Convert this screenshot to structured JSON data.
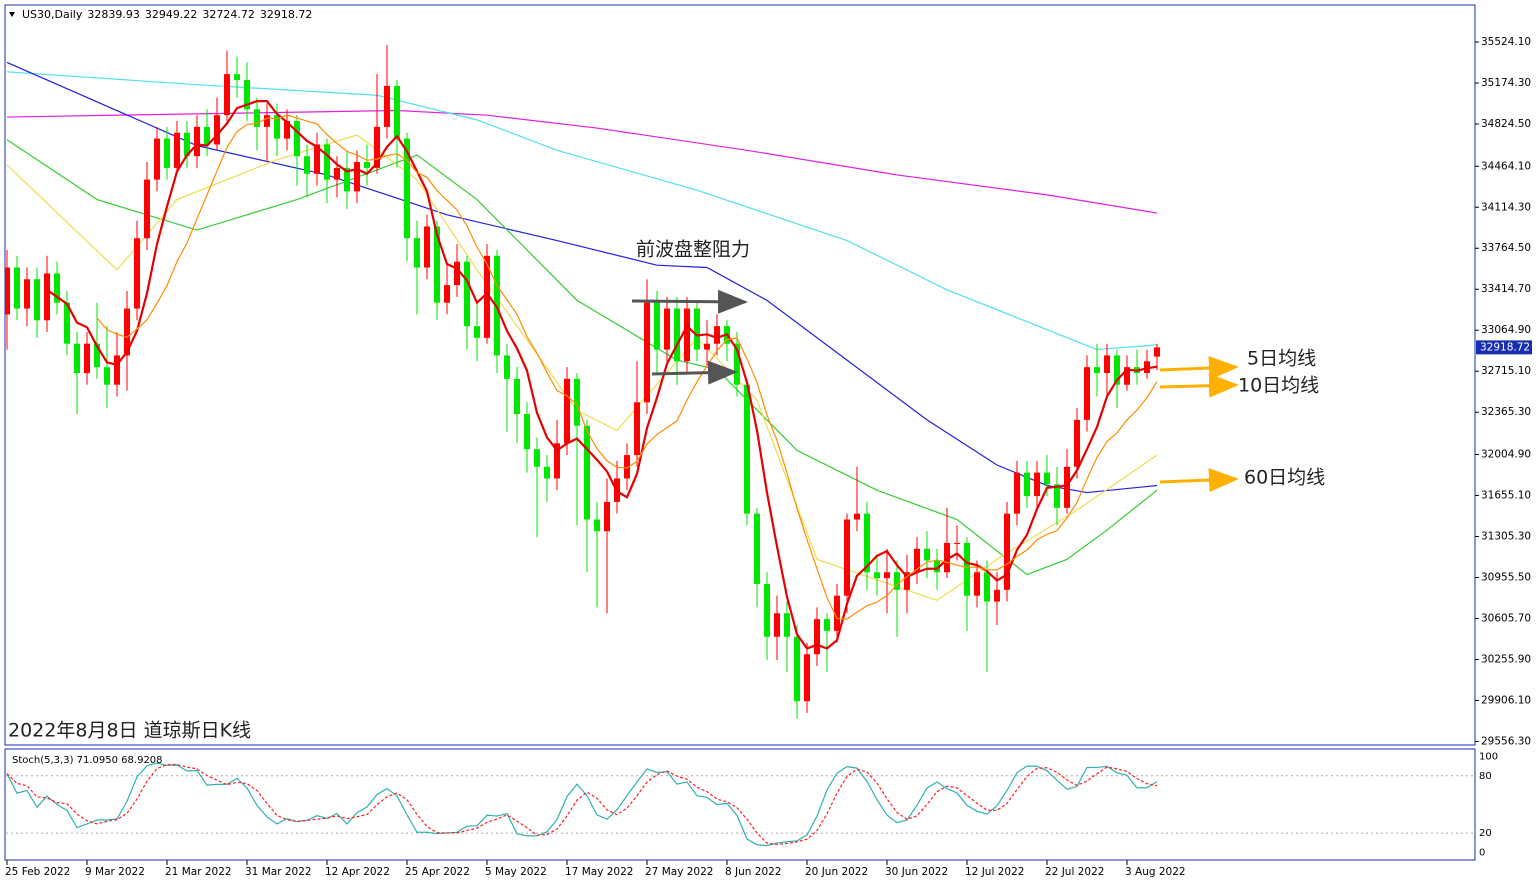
{
  "chart_data": {
    "type": "candlestick",
    "symbol": "US30,Daily",
    "title": "2022年8月8日 道琼斯日K线",
    "annotations": [
      "前波盘整阻力",
      "5日均线",
      "10日均线",
      "60日均线"
    ],
    "up_color": "#ff0000",
    "down_color": "#00e600",
    "ylim": [
      29526,
      35840
    ],
    "yticks": [
      {
        "value": 35524.1,
        "label": "35524.10"
      },
      {
        "value": 35174.3,
        "label": "35174.30"
      },
      {
        "value": 34824.5,
        "label": "34824.50"
      },
      {
        "value": 34464.1,
        "label": "34464.10"
      },
      {
        "value": 34114.3,
        "label": "34114.30"
      },
      {
        "value": 33764.5,
        "label": "33764.50"
      },
      {
        "value": 33414.7,
        "label": "33414.70"
      },
      {
        "value": 33064.9,
        "label": "33064.90"
      },
      {
        "value": 32715.1,
        "label": "32715.10"
      },
      {
        "value": 32365.3,
        "label": "32365.30"
      },
      {
        "value": 32004.9,
        "label": "32004.90"
      },
      {
        "value": 31655.1,
        "label": "31655.10"
      },
      {
        "value": 31305.3,
        "label": "31305.30"
      },
      {
        "value": 30955.5,
        "label": "30955.50"
      },
      {
        "value": 30605.7,
        "label": "30605.70"
      },
      {
        "value": 30255.9,
        "label": "30255.90"
      },
      {
        "value": 29906.1,
        "label": "29906.10"
      },
      {
        "value": 29556.3,
        "label": "29556.30"
      }
    ],
    "xticks": [
      {
        "value": 0,
        "label": "25 Feb 2022"
      },
      {
        "value": 8,
        "label": "9 Mar 2022"
      },
      {
        "value": 16,
        "label": "21 Mar 2022"
      },
      {
        "value": 24,
        "label": "31 Mar 2022"
      },
      {
        "value": 32,
        "label": "12 Apr 2022"
      },
      {
        "value": 40,
        "label": "25 Apr 2022"
      },
      {
        "value": 48,
        "label": "5 May 2022"
      },
      {
        "value": 56,
        "label": "17 May 2022"
      },
      {
        "value": 64,
        "label": "27 May 2022"
      },
      {
        "value": 72,
        "label": "8 Jun 2022"
      },
      {
        "value": 80,
        "label": "20 Jun 2022"
      },
      {
        "value": 88,
        "label": "30 Jun 2022"
      },
      {
        "value": 96,
        "label": "12 Jul 2022"
      },
      {
        "value": 104,
        "label": "22 Jul 2022"
      },
      {
        "value": 112,
        "label": "3 Aug 2022"
      }
    ],
    "open": [
      33200,
      33600,
      33250,
      33500,
      33150,
      33550,
      33300,
      32950,
      32700,
      32950,
      32750,
      32600,
      32850,
      33250,
      33850,
      34350,
      34700,
      34450,
      34750,
      34550,
      34800,
      34650,
      34900,
      35250,
      35200,
      34950,
      34800,
      34900,
      34700,
      34850,
      34550,
      34400,
      34650,
      34350,
      34450,
      34250,
      34500,
      34450,
      34800,
      35150,
      34700,
      33850,
      33600,
      33950,
      33300,
      33450,
      33650,
      33100,
      33000,
      33700,
      32850,
      32650,
      32350,
      32050,
      31900,
      31800,
      32100,
      32650,
      32250,
      31450,
      31350,
      31600,
      31800,
      32000,
      32450,
      33300,
      32900,
      33250,
      32800,
      33250,
      32900,
      32950,
      33100,
      32950,
      32600,
      31500,
      30900,
      30450,
      30650,
      30450,
      29900,
      30300,
      30600,
      30500,
      30800,
      31450,
      31500,
      31000,
      30950,
      31000,
      30850,
      31000,
      31200,
      31100,
      31000,
      31250,
      31250,
      30800,
      31000,
      30750,
      30850,
      31500,
      31850,
      31650,
      31850,
      31750,
      31550,
      31900,
      32300,
      32750,
      32700,
      32850,
      32600,
      32750,
      32700,
      32839.93
    ],
    "high": [
      33750,
      33700,
      33600,
      33600,
      33700,
      33650,
      33400,
      33050,
      33050,
      33300,
      33100,
      33050,
      33400,
      34000,
      34500,
      34800,
      34800,
      34850,
      34850,
      34900,
      34950,
      35050,
      35450,
      35400,
      35350,
      35050,
      35000,
      35000,
      34950,
      34900,
      34650,
      34750,
      34700,
      34550,
      34600,
      34600,
      34650,
      35250,
      35500,
      35200,
      34750,
      34000,
      34050,
      34000,
      33650,
      33800,
      33700,
      33300,
      33800,
      33750,
      32950,
      32750,
      32450,
      32150,
      32000,
      32300,
      32750,
      32700,
      32300,
      31600,
      31800,
      31950,
      32100,
      32800,
      33500,
      33400,
      33350,
      33350,
      33350,
      33300,
      33150,
      33200,
      33150,
      33050,
      32650,
      31550,
      31000,
      30800,
      30750,
      30550,
      30400,
      30700,
      30650,
      30900,
      31500,
      31900,
      31600,
      31150,
      31200,
      31100,
      31150,
      31300,
      31350,
      31200,
      31550,
      31400,
      31300,
      31100,
      31100,
      31000,
      31600,
      31950,
      31950,
      31950,
      32000,
      31900,
      32050,
      32400,
      32850,
      32950,
      32950,
      32900,
      32850,
      32900,
      32900,
      32949.22
    ],
    "low": [
      32900,
      33150,
      33100,
      33000,
      33050,
      33200,
      32850,
      32350,
      32600,
      32650,
      32400,
      32500,
      32550,
      33150,
      33750,
      34250,
      34350,
      34400,
      34450,
      34450,
      34550,
      34600,
      34850,
      35050,
      34850,
      34600,
      34500,
      34550,
      34600,
      34300,
      34200,
      34300,
      34150,
      34200,
      34100,
      34150,
      34300,
      34400,
      34700,
      34450,
      33650,
      33200,
      33500,
      33150,
      33200,
      33350,
      32900,
      32800,
      32950,
      32700,
      32200,
      32100,
      31850,
      31300,
      31600,
      31700,
      32000,
      31400,
      31000,
      30700,
      30650,
      31500,
      31700,
      31900,
      32350,
      32700,
      32800,
      32600,
      32700,
      32800,
      32750,
      32850,
      32800,
      32500,
      31400,
      30700,
      30250,
      30250,
      30150,
      29750,
      29800,
      30200,
      30150,
      30400,
      30650,
      31350,
      30850,
      30800,
      30650,
      30450,
      30650,
      30900,
      30950,
      30850,
      30950,
      31100,
      30500,
      30700,
      30150,
      30550,
      30750,
      31400,
      31550,
      31550,
      31650,
      31400,
      31500,
      31800,
      32200,
      32500,
      32500,
      32400,
      32550,
      32600,
      32650,
      32724.72
    ],
    "close": [
      33600,
      33250,
      33500,
      33150,
      33550,
      33300,
      32950,
      32700,
      32950,
      32750,
      32600,
      32850,
      33250,
      33850,
      34350,
      34700,
      34450,
      34750,
      34550,
      34800,
      34650,
      34900,
      35250,
      35200,
      34950,
      34800,
      34900,
      34700,
      34850,
      34550,
      34400,
      34650,
      34350,
      34450,
      34250,
      34500,
      34450,
      34800,
      35150,
      34700,
      33850,
      33600,
      33950,
      33300,
      33450,
      33650,
      33100,
      33000,
      33700,
      32850,
      32650,
      32350,
      32050,
      31900,
      31800,
      32100,
      32650,
      32250,
      31450,
      31350,
      31600,
      31800,
      32000,
      32450,
      33300,
      32900,
      33250,
      32800,
      33250,
      32900,
      32950,
      33100,
      32950,
      32600,
      31500,
      30900,
      30450,
      30650,
      30450,
      29900,
      30300,
      30600,
      30500,
      30800,
      31450,
      31500,
      31000,
      30950,
      31000,
      30850,
      31000,
      31200,
      31100,
      31000,
      31250,
      31250,
      30800,
      31000,
      30750,
      30850,
      31500,
      31850,
      31650,
      31850,
      31750,
      31550,
      31900,
      32300,
      32750,
      32700,
      32850,
      32600,
      32750,
      32700,
      32800,
      32918.72
    ],
    "ma": [
      {
        "period": 5,
        "color": "#e60000"
      },
      {
        "period": 10,
        "color": "#ff8c00"
      }
    ],
    "series": [
      {
        "color": "#e020e0",
        "x": [
          0,
          39,
          48,
          59,
          74,
          89,
          104,
          115
        ],
        "values": [
          34884,
          34940,
          34900,
          34790,
          34600,
          34390,
          34220,
          34065
        ]
      },
      {
        "color": "#50e0f0",
        "x": [
          0,
          19,
          37,
          47,
          55,
          69,
          84,
          94,
          104,
          109,
          115
        ],
        "values": [
          35270,
          35160,
          35070,
          34860,
          34600,
          34260,
          33830,
          33410,
          33070,
          32900,
          32940
        ]
      },
      {
        "color": "#2020e0",
        "x": [
          0,
          19,
          32,
          44,
          55,
          65,
          70,
          76,
          84,
          92,
          99,
          104,
          108,
          115
        ],
        "values": [
          35350,
          34640,
          34390,
          34050,
          33830,
          33620,
          33600,
          33320,
          32810,
          32300,
          31915,
          31740,
          31680,
          31740
        ]
      },
      {
        "color": "#33cc33",
        "x": [
          0,
          9,
          19,
          29,
          41,
          47,
          57,
          67,
          71,
          79,
          87,
          95,
          102,
          106,
          110,
          115
        ],
        "values": [
          34690,
          34180,
          33920,
          34180,
          34560,
          34180,
          33320,
          32810,
          32730,
          32040,
          31700,
          31450,
          30980,
          31110,
          31360,
          31700
        ]
      },
      {
        "color": "#f0dc50",
        "x": [
          0,
          11,
          17,
          27,
          35,
          41,
          47,
          57,
          61,
          69,
          75,
          81,
          93,
          99,
          107,
          115
        ],
        "values": [
          34475,
          33580,
          34180,
          34520,
          34730,
          34350,
          33580,
          32380,
          32210,
          33000,
          32470,
          31110,
          30760,
          31110,
          31530,
          32000
        ]
      }
    ],
    "stoch": {
      "title": "Stoch(5,3,3) 71.0950 68.9208",
      "k": 5,
      "slowing": 3,
      "d": 3,
      "k_color": "#30b0b0",
      "d_color": "#ff2020",
      "ylim": [
        -6,
        107
      ],
      "yticks": [
        0,
        20,
        80,
        100
      ],
      "levels": [
        20,
        80
      ]
    }
  }
}
